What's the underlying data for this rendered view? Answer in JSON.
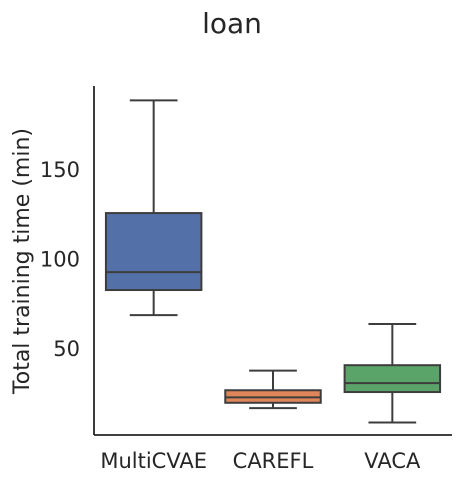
{
  "chart_data": {
    "type": "box",
    "title": "loan",
    "xlabel": "",
    "ylabel": "Total training time (min)",
    "categories": [
      "MultiCVAE",
      "CAREFL",
      "VACA"
    ],
    "colors": [
      "#5470a8",
      "#de8559",
      "#5aa469"
    ],
    "boxes": [
      {
        "category": "MultiCVAE",
        "whisker_low": 69,
        "q1": 83,
        "median": 93,
        "q3": 126,
        "whisker_high": 189
      },
      {
        "category": "CAREFL",
        "whisker_low": 17,
        "q1": 20,
        "median": 23,
        "q3": 27,
        "whisker_high": 38
      },
      {
        "category": "VACA",
        "whisker_low": 9,
        "q1": 26,
        "median": 31,
        "q3": 41,
        "whisker_high": 64
      }
    ],
    "yticks": [
      50,
      100,
      150
    ],
    "ylim": [
      2,
      197
    ],
    "grid": false,
    "legend": "none"
  }
}
